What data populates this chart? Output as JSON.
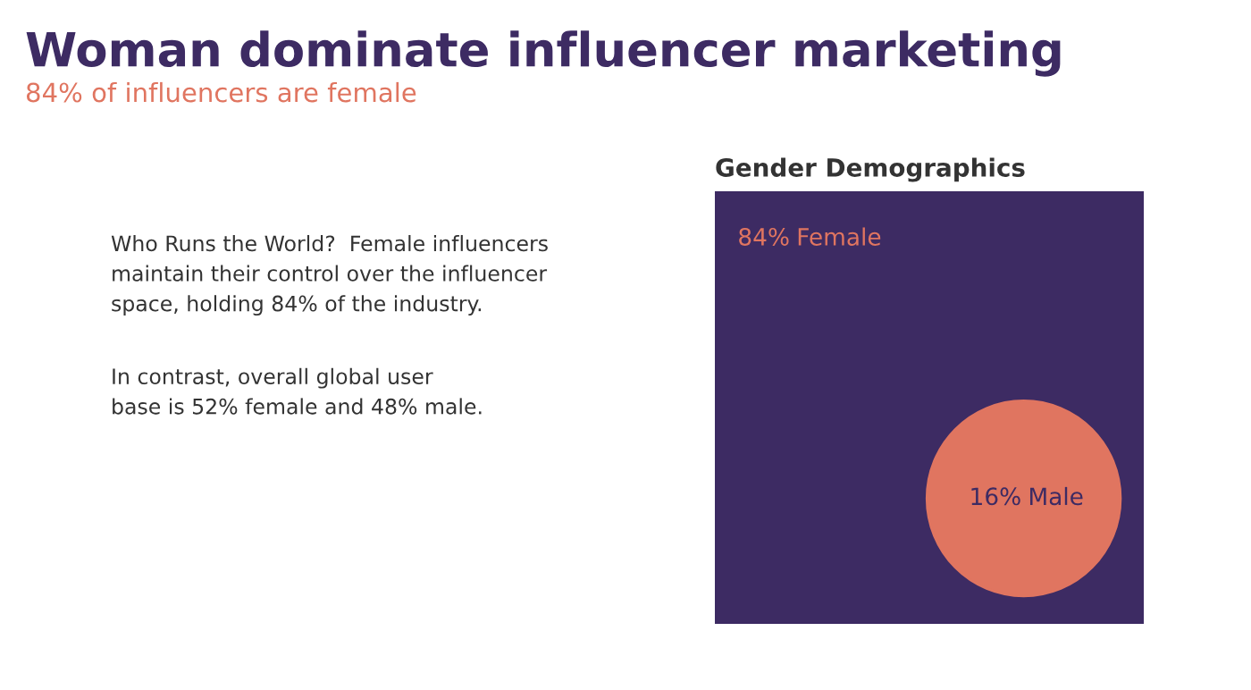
{
  "chart_data": {
    "type": "other",
    "title": "Woman dominate influencer marketing",
    "subtitle": "84% of influencers are female",
    "categories": [
      "Female",
      "Male"
    ],
    "values": [
      84,
      16
    ],
    "value_labels": [
      "84%",
      "16%"
    ],
    "colors": [
      "#3d2b63",
      "#e07560"
    ],
    "annotations": [
      "Gender Demographics",
      "Who Runs the World?  Female influencers\nmaintain their control over the influencer\nspace, holding 84% of the industry.",
      "In contrast, overall global user\nbase is 52% female and 48% male."
    ]
  }
}
